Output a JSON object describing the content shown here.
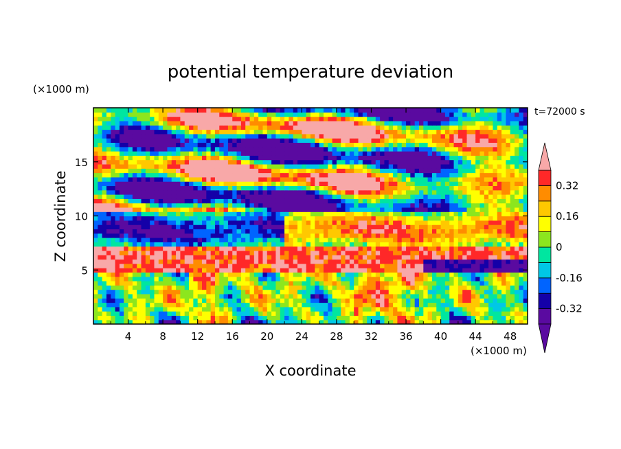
{
  "chart_data": {
    "type": "heatmap",
    "title": "potential temperature deviation",
    "xlabel": "X coordinate",
    "ylabel": "Z coordinate",
    "x_unit": "(×1000 m)",
    "y_unit": "(×1000 m)",
    "time_label": "t=72000 s",
    "xlim": [
      0,
      50
    ],
    "ylim": [
      0,
      20
    ],
    "x_ticks": [
      4,
      8,
      12,
      16,
      20,
      24,
      28,
      32,
      36,
      40,
      44,
      48
    ],
    "y_ticks": [
      5,
      10,
      15
    ],
    "colorbar": {
      "levels": [
        -0.4,
        -0.32,
        -0.24,
        -0.16,
        -0.08,
        0,
        0.08,
        0.16,
        0.24,
        0.32,
        0.4
      ],
      "labels": [
        "0.32",
        "0.16",
        "0",
        "-0.16",
        "-0.32"
      ],
      "label_values": [
        0.32,
        0.16,
        0,
        -0.16,
        -0.32
      ],
      "colors_low_to_high": [
        "#5a0aa0",
        "#1400a8",
        "#0064ff",
        "#00c8e6",
        "#00e6a0",
        "#8ce61e",
        "#ffff00",
        "#ffc800",
        "#ff8c00",
        "#ff2828"
      ],
      "over_color": "#f8a8a8",
      "under_color": "#5a0aa0",
      "extend": "both"
    }
  }
}
